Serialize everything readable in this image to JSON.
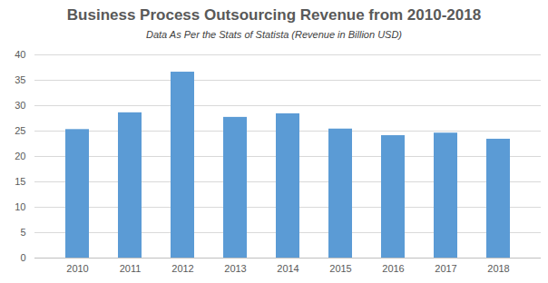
{
  "chart_data": {
    "type": "bar",
    "title": "Business Process Outsourcing Revenue from 2010-2018",
    "subtitle": "Data As Per the Stats of Statista (Revenue in Billion USD)",
    "categories": [
      "2010",
      "2011",
      "2012",
      "2013",
      "2014",
      "2015",
      "2016",
      "2017",
      "2018"
    ],
    "values": [
      25.3,
      28.6,
      36.6,
      27.7,
      28.4,
      25.4,
      24.1,
      24.6,
      23.4
    ],
    "color": "#5b9bd5",
    "ylim": [
      0,
      40
    ],
    "yticks": [
      0,
      5,
      10,
      15,
      20,
      25,
      30,
      35,
      40
    ],
    "grid": true
  }
}
